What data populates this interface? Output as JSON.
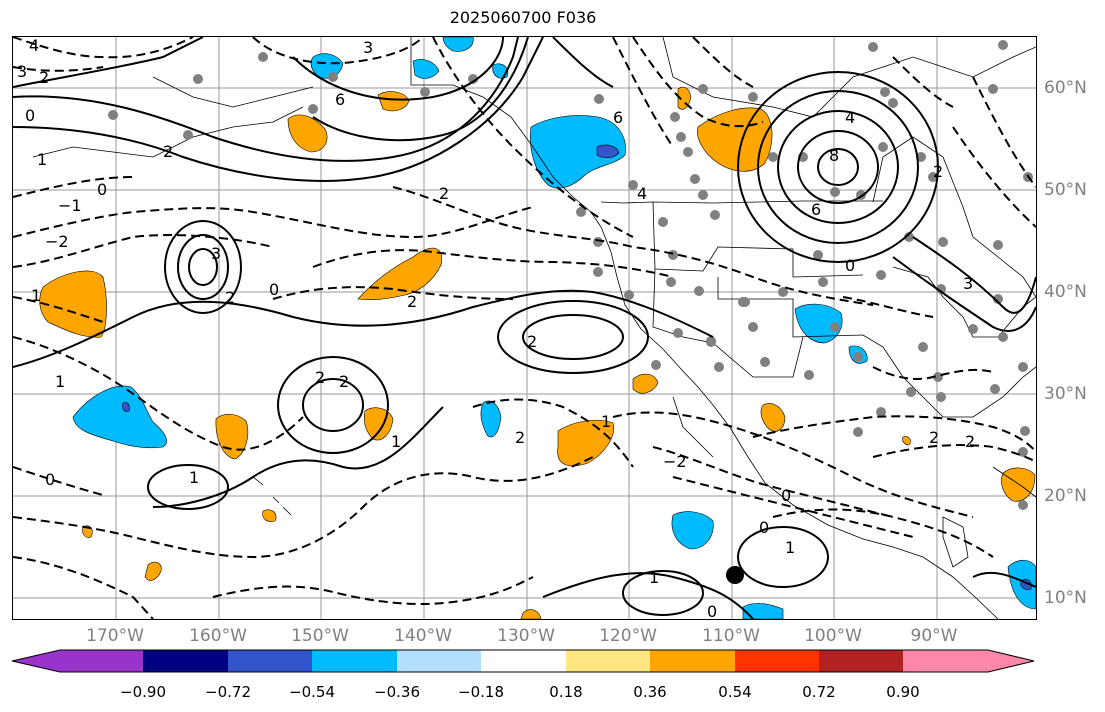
{
  "title": "2025060700 F036",
  "lon_labels": [
    "170°W",
    "160°W",
    "150°W",
    "140°W",
    "130°W",
    "120°W",
    "110°W",
    "100°W",
    "90°W"
  ],
  "lat_labels": [
    "60°N",
    "50°N",
    "40°N",
    "30°N",
    "20°N",
    "10°N"
  ],
  "colorbar": {
    "ticks": [
      "−0.90",
      "−0.72",
      "−0.54",
      "−0.36",
      "−0.18",
      "0.18",
      "0.36",
      "0.54",
      "0.72",
      "0.90"
    ],
    "colors": [
      "#9933cc",
      "#000080",
      "#3355cc",
      "#00bbff",
      "#b3e0ff",
      "#ffffff",
      "#ffe680",
      "#ffa500",
      "#ff3300",
      "#b22222",
      "#ff88aa"
    ]
  },
  "contour_labels": [
    "4",
    "3",
    "2",
    "0",
    "6",
    "1",
    "−1",
    "−2",
    "3",
    "2",
    "0",
    "1",
    "2",
    "6",
    "4",
    "2",
    "0",
    "8",
    "6",
    "4",
    "2",
    "0",
    "3",
    "2",
    "2",
    "2",
    "1",
    "1",
    "2",
    "0",
    "1",
    "1",
    "0",
    "0",
    "1",
    "0",
    "−2",
    "2",
    "1",
    "2",
    "3",
    "2"
  ],
  "colors": {
    "positive_fill": "#ffa500",
    "negative_fill": "#00bbff",
    "strong_negative_fill": "#3355cc",
    "station_marker": "#808080"
  }
}
